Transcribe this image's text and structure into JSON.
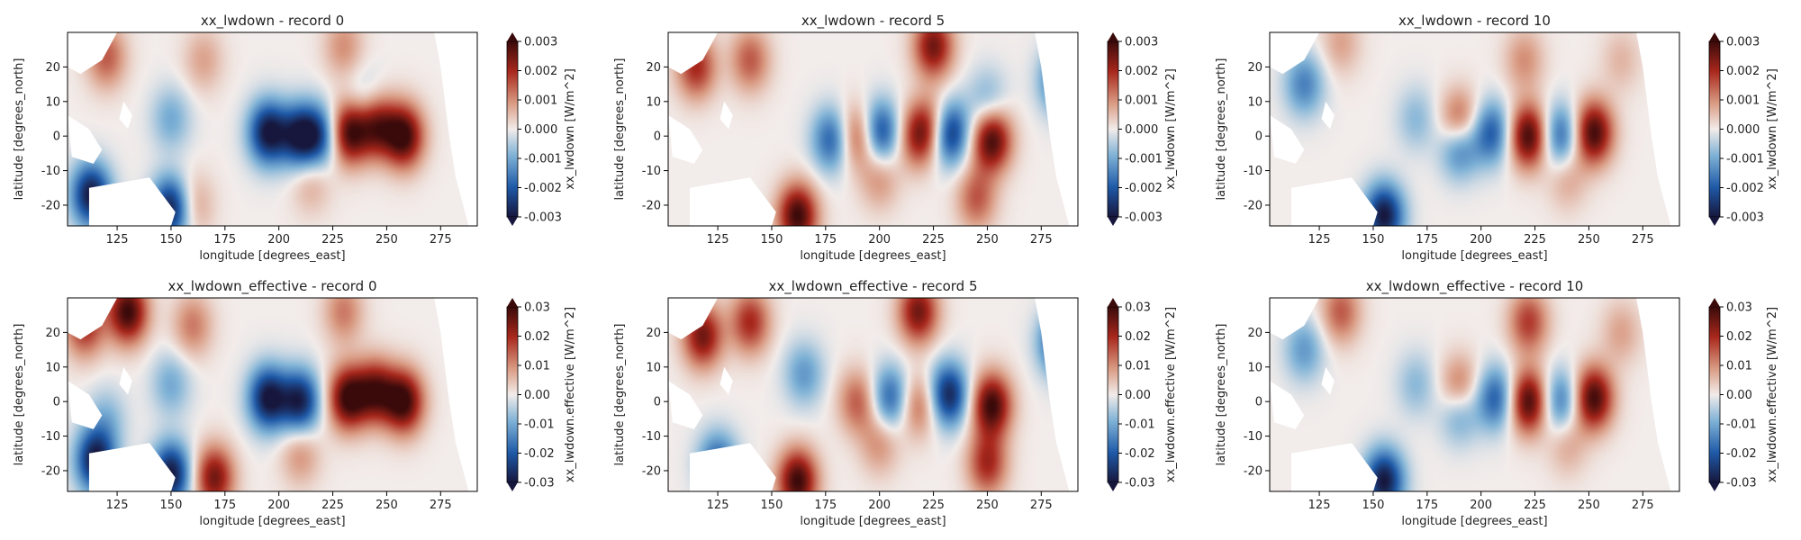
{
  "figure": {
    "layout": "2 rows x 3 columns of heatmap panels with colorbars"
  },
  "chart_data": [
    {
      "type": "heatmap",
      "title": "xx_lwdown - record 0",
      "xlabel": "longitude [degrees_east]",
      "ylabel": "latitude [degrees_north]",
      "xlim": [
        102,
        292
      ],
      "ylim": [
        -26,
        30
      ],
      "xticks": [
        "125",
        "150",
        "175",
        "200",
        "225",
        "250",
        "275"
      ],
      "yticks": [
        "20",
        "10",
        "0",
        "-10",
        "-20"
      ],
      "colorbar": {
        "label": "xx_lwdown [W/m^2]",
        "range": [
          -0.003,
          0.003
        ],
        "ticks": [
          "0.003",
          "0.002",
          "0.001",
          "0.000",
          "-0.001",
          "-0.002",
          "-0.003"
        ]
      },
      "features": [
        {
          "lon": 195,
          "lat": 1,
          "value": -0.003
        },
        {
          "lon": 210,
          "lat": 0,
          "value": -0.0028
        },
        {
          "lon": 220,
          "lat": 0,
          "value": -0.002
        },
        {
          "lon": 232,
          "lat": 1,
          "value": 0.003
        },
        {
          "lon": 245,
          "lat": 3,
          "value": 0.0025
        },
        {
          "lon": 258,
          "lat": 0,
          "value": 0.003
        },
        {
          "lon": 113,
          "lat": -17,
          "value": -0.003
        },
        {
          "lon": 150,
          "lat": -21,
          "value": -0.003
        },
        {
          "lon": 120,
          "lat": 23,
          "value": 0.0015
        },
        {
          "lon": 165,
          "lat": 22,
          "value": 0.0008
        },
        {
          "lon": 230,
          "lat": 26,
          "value": 0.001
        },
        {
          "lon": 160,
          "lat": -20,
          "value": 0.001
        },
        {
          "lon": 215,
          "lat": -13,
          "value": 0.0008
        },
        {
          "lon": 150,
          "lat": 5,
          "value": -0.001
        },
        {
          "lon": 240,
          "lat": 10,
          "value": -0.0008
        }
      ]
    },
    {
      "type": "heatmap",
      "title": "xx_lwdown - record 5",
      "xlabel": "longitude [degrees_east]",
      "ylabel": "latitude [degrees_north]",
      "xlim": [
        102,
        292
      ],
      "ylim": [
        -26,
        30
      ],
      "xticks": [
        "125",
        "150",
        "175",
        "200",
        "225",
        "250",
        "275"
      ],
      "yticks": [
        "20",
        "10",
        "0",
        "-10",
        "-20"
      ],
      "colorbar": {
        "label": "xx_lwdown [W/m^2]",
        "range": [
          -0.003,
          0.003
        ],
        "ticks": [
          "0.003",
          "0.002",
          "0.001",
          "0.000",
          "-0.001",
          "-0.002",
          "-0.003"
        ]
      },
      "features": [
        {
          "lon": 200,
          "lat": 1,
          "value": -0.0025
        },
        {
          "lon": 190,
          "lat": 0,
          "value": 0.002
        },
        {
          "lon": 218,
          "lat": 0,
          "value": 0.002
        },
        {
          "lon": 232,
          "lat": 1,
          "value": -0.003
        },
        {
          "lon": 252,
          "lat": -1,
          "value": 0.003
        },
        {
          "lon": 225,
          "lat": 3,
          "value": 0.0015
        },
        {
          "lon": 178,
          "lat": -1,
          "value": -0.002
        },
        {
          "lon": 162,
          "lat": -23,
          "value": 0.003
        },
        {
          "lon": 140,
          "lat": 22,
          "value": 0.0015
        },
        {
          "lon": 225,
          "lat": 26,
          "value": 0.0025
        },
        {
          "lon": 115,
          "lat": 20,
          "value": 0.002
        },
        {
          "lon": 200,
          "lat": -12,
          "value": 0.001
        },
        {
          "lon": 245,
          "lat": -18,
          "value": 0.0015
        },
        {
          "lon": 250,
          "lat": 10,
          "value": -0.001
        },
        {
          "lon": 283,
          "lat": 16,
          "value": -0.002
        }
      ]
    },
    {
      "type": "heatmap",
      "title": "xx_lwdown - record 10",
      "xlabel": "longitude [degrees_east]",
      "ylabel": "latitude [degrees_north]",
      "xlim": [
        102,
        292
      ],
      "ylim": [
        -26,
        30
      ],
      "xticks": [
        "125",
        "150",
        "175",
        "200",
        "225",
        "250",
        "275"
      ],
      "yticks": [
        "20",
        "10",
        "0",
        "-10",
        "-20"
      ],
      "colorbar": {
        "label": "xx_lwdown [W/m^2]",
        "range": [
          -0.003,
          0.003
        ],
        "ticks": [
          "0.003",
          "0.002",
          "0.001",
          "0.000",
          "-0.001",
          "-0.002",
          "-0.003"
        ]
      },
      "features": [
        {
          "lon": 190,
          "lat": 3,
          "value": 0.0025
        },
        {
          "lon": 190,
          "lat": -2,
          "value": -0.0025
        },
        {
          "lon": 205,
          "lat": 1,
          "value": -0.002
        },
        {
          "lon": 222,
          "lat": 0,
          "value": 0.003
        },
        {
          "lon": 237,
          "lat": 0,
          "value": -0.002
        },
        {
          "lon": 252,
          "lat": 1,
          "value": 0.003
        },
        {
          "lon": 155,
          "lat": -23,
          "value": -0.003
        },
        {
          "lon": 118,
          "lat": 15,
          "value": -0.0015
        },
        {
          "lon": 135,
          "lat": 27,
          "value": 0.0008
        },
        {
          "lon": 220,
          "lat": 22,
          "value": 0.001
        },
        {
          "lon": 240,
          "lat": -12,
          "value": 0.0008
        },
        {
          "lon": 265,
          "lat": 22,
          "value": 0.0006
        },
        {
          "lon": 170,
          "lat": 5,
          "value": -0.0008
        }
      ]
    },
    {
      "type": "heatmap",
      "title": "xx_lwdown_effective - record 0",
      "xlabel": "longitude [degrees_east]",
      "ylabel": "latitude [degrees_north]",
      "xlim": [
        102,
        292
      ],
      "ylim": [
        -26,
        30
      ],
      "xticks": [
        "125",
        "150",
        "175",
        "200",
        "225",
        "250",
        "275"
      ],
      "yticks": [
        "20",
        "10",
        "0",
        "-10",
        "-20"
      ],
      "colorbar": {
        "label": "xx_lwdown.effective [W/m^2]",
        "range": [
          -0.03,
          0.03
        ],
        "ticks": [
          "0.03",
          "0.02",
          "0.01",
          "0.00",
          "-0.01",
          "-0.02",
          "-0.03"
        ]
      },
      "features": [
        {
          "lon": 130,
          "lat": 26,
          "value": 0.03
        },
        {
          "lon": 110,
          "lat": 22,
          "value": 0.02
        },
        {
          "lon": 195,
          "lat": 1,
          "value": -0.03
        },
        {
          "lon": 210,
          "lat": 0,
          "value": -0.028
        },
        {
          "lon": 232,
          "lat": 1,
          "value": 0.03
        },
        {
          "lon": 245,
          "lat": 3,
          "value": 0.025
        },
        {
          "lon": 258,
          "lat": 0,
          "value": 0.03
        },
        {
          "lon": 115,
          "lat": -17,
          "value": -0.03
        },
        {
          "lon": 150,
          "lat": -21,
          "value": -0.03
        },
        {
          "lon": 170,
          "lat": -22,
          "value": 0.025
        },
        {
          "lon": 160,
          "lat": 22,
          "value": 0.012
        },
        {
          "lon": 230,
          "lat": 26,
          "value": 0.012
        },
        {
          "lon": 210,
          "lat": -15,
          "value": 0.01
        },
        {
          "lon": 150,
          "lat": 5,
          "value": -0.01
        },
        {
          "lon": 120,
          "lat": -5,
          "value": -0.008
        }
      ]
    },
    {
      "type": "heatmap",
      "title": "xx_lwdown_effective - record 5",
      "xlabel": "longitude [degrees_east]",
      "ylabel": "latitude [degrees_north]",
      "xlim": [
        102,
        292
      ],
      "ylim": [
        -26,
        30
      ],
      "xticks": [
        "125",
        "150",
        "175",
        "200",
        "225",
        "250",
        "275"
      ],
      "yticks": [
        "20",
        "10",
        "0",
        "-10",
        "-20"
      ],
      "colorbar": {
        "label": "xx_lwdown.effective [W/m^2]",
        "range": [
          -0.03,
          0.03
        ],
        "ticks": [
          "0.03",
          "0.02",
          "0.01",
          "0.00",
          "-0.01",
          "-0.02",
          "-0.03"
        ]
      },
      "features": [
        {
          "lon": 140,
          "lat": 23,
          "value": 0.02
        },
        {
          "lon": 118,
          "lat": 19,
          "value": 0.025
        },
        {
          "lon": 218,
          "lat": 26,
          "value": 0.025
        },
        {
          "lon": 252,
          "lat": -1,
          "value": 0.03
        },
        {
          "lon": 232,
          "lat": 2,
          "value": -0.028
        },
        {
          "lon": 205,
          "lat": 1,
          "value": -0.02
        },
        {
          "lon": 190,
          "lat": 0,
          "value": 0.015
        },
        {
          "lon": 218,
          "lat": -1,
          "value": 0.015
        },
        {
          "lon": 162,
          "lat": -23,
          "value": 0.03
        },
        {
          "lon": 125,
          "lat": -18,
          "value": -0.02
        },
        {
          "lon": 250,
          "lat": -18,
          "value": 0.02
        },
        {
          "lon": 283,
          "lat": 17,
          "value": -0.025
        },
        {
          "lon": 165,
          "lat": 8,
          "value": -0.012
        },
        {
          "lon": 200,
          "lat": -12,
          "value": 0.01
        }
      ]
    },
    {
      "type": "heatmap",
      "title": "xx_lwdown_effective - record 10",
      "xlabel": "longitude [degrees_east]",
      "ylabel": "latitude [degrees_north]",
      "xlim": [
        102,
        292
      ],
      "ylim": [
        -26,
        30
      ],
      "xticks": [
        "125",
        "150",
        "175",
        "200",
        "225",
        "250",
        "275"
      ],
      "yticks": [
        "20",
        "10",
        "0",
        "-10",
        "-20"
      ],
      "colorbar": {
        "label": "xx_lwdown.effective [W/m^2]",
        "range": [
          -0.03,
          0.03
        ],
        "ticks": [
          "0.03",
          "0.02",
          "0.01",
          "0.00",
          "-0.01",
          "-0.02",
          "-0.03"
        ]
      },
      "features": [
        {
          "lon": 190,
          "lat": 3,
          "value": 0.02
        },
        {
          "lon": 190,
          "lat": -2,
          "value": -0.018
        },
        {
          "lon": 207,
          "lat": 1,
          "value": -0.02
        },
        {
          "lon": 222,
          "lat": 0,
          "value": 0.03
        },
        {
          "lon": 237,
          "lat": 0,
          "value": -0.018
        },
        {
          "lon": 252,
          "lat": 1,
          "value": 0.03
        },
        {
          "lon": 155,
          "lat": -23,
          "value": -0.03
        },
        {
          "lon": 135,
          "lat": 26,
          "value": 0.015
        },
        {
          "lon": 222,
          "lat": 23,
          "value": 0.018
        },
        {
          "lon": 118,
          "lat": 15,
          "value": -0.012
        },
        {
          "lon": 240,
          "lat": -12,
          "value": 0.008
        },
        {
          "lon": 265,
          "lat": 20,
          "value": 0.008
        },
        {
          "lon": 170,
          "lat": 5,
          "value": -0.008
        }
      ]
    }
  ]
}
